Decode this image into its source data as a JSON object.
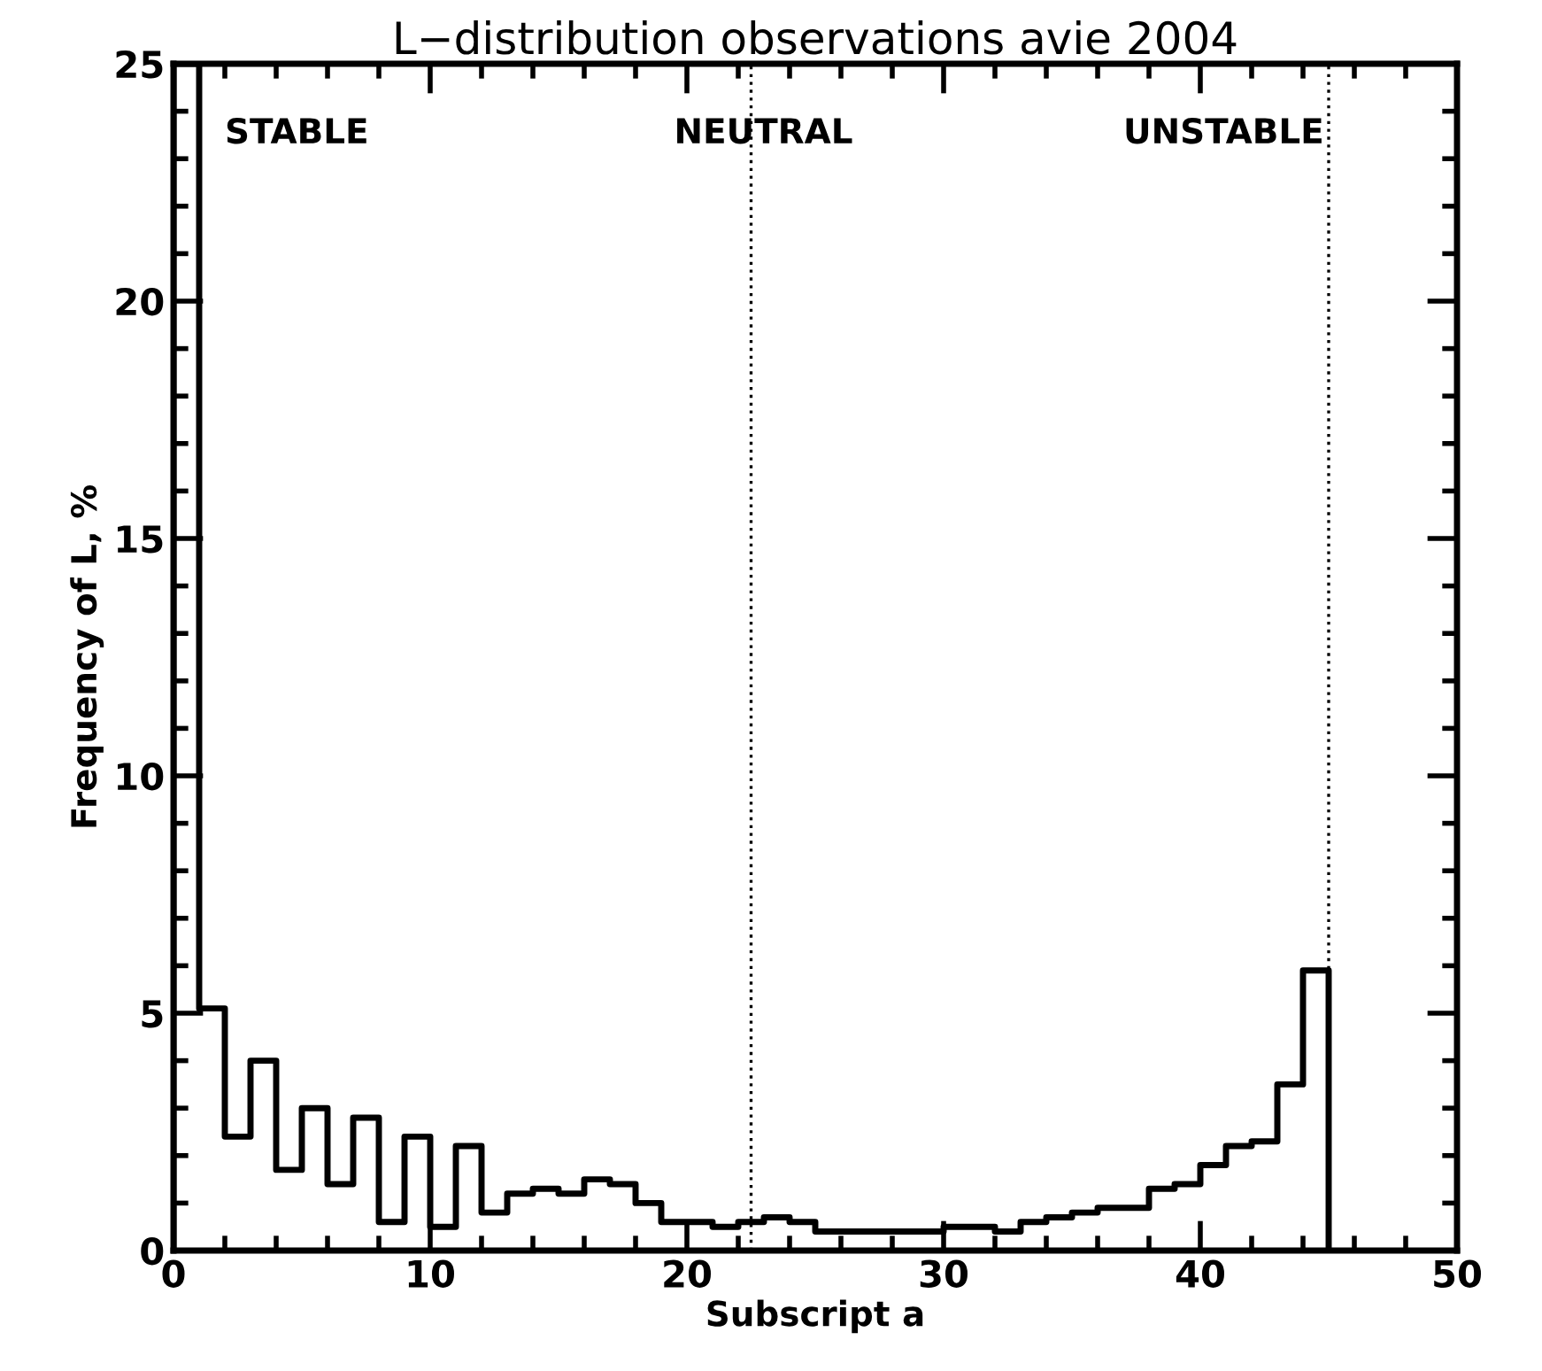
{
  "chart_data": {
    "type": "histogram",
    "title": "L−distribution observations avie 2004",
    "xlabel": "Subscript a",
    "ylabel": "Frequency of L, %",
    "bins": [
      0,
      1,
      2,
      3,
      4,
      5,
      6,
      7,
      8,
      9,
      10,
      11,
      12,
      13,
      14,
      15,
      16,
      17,
      18,
      19,
      20,
      21,
      22,
      23,
      24,
      25,
      26,
      27,
      28,
      29,
      30,
      31,
      32,
      33,
      34,
      35,
      36,
      37,
      38,
      39,
      40,
      41,
      42,
      43,
      44,
      45
    ],
    "values": [
      25,
      5.1,
      2.4,
      4.0,
      1.7,
      3.0,
      1.4,
      2.8,
      0.6,
      2.4,
      0.5,
      2.2,
      0.8,
      1.2,
      1.3,
      1.2,
      1.5,
      1.4,
      1.0,
      0.6,
      0.6,
      0.5,
      0.6,
      0.7,
      0.6,
      0.4,
      0.4,
      0.4,
      0.4,
      0.4,
      0.5,
      0.5,
      0.4,
      0.6,
      0.7,
      0.8,
      0.9,
      0.9,
      1.3,
      1.4,
      1.8,
      2.2,
      2.3,
      3.5,
      5.9
    ],
    "color": "#000000",
    "xlim": [
      0,
      50
    ],
    "xticks": [
      0,
      10,
      20,
      30,
      40,
      50
    ],
    "ylim": [
      0,
      25
    ],
    "yticks": [
      0,
      5,
      10,
      15,
      20,
      25
    ],
    "ref_lines": [
      {
        "axis": "x",
        "value": 22.5,
        "line_style": "dotted"
      },
      {
        "axis": "x",
        "value": 45,
        "line_style": "dotted"
      }
    ],
    "annotations": [
      "STABLE",
      "NEUTRAL",
      "UNSTABLE"
    ],
    "grid": false
  }
}
